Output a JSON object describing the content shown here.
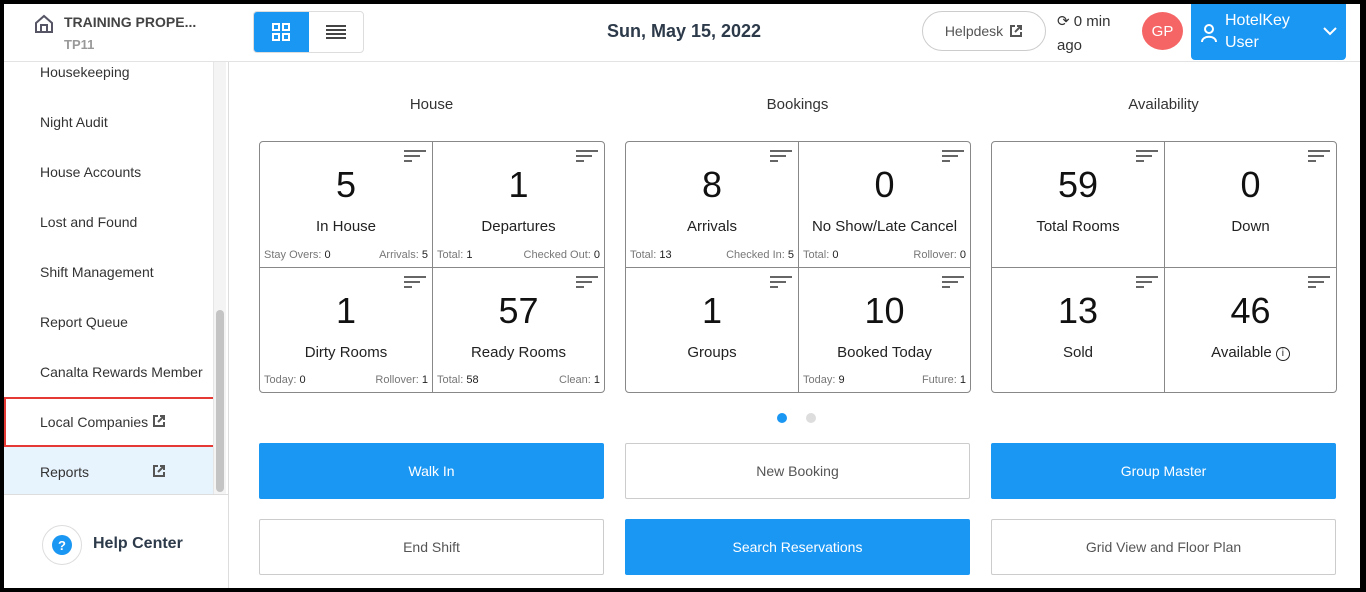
{
  "header": {
    "property_name": "TRAINING PROPE...",
    "property_code": "TP11",
    "date": "Sun, May 15, 2022",
    "helpdesk_label": "Helpdesk",
    "sync_text": "0 min ago",
    "avatar_initials": "GP",
    "user_name": "HotelKey User"
  },
  "sidebar": {
    "items": [
      {
        "label": "Housekeeping"
      },
      {
        "label": "Night Audit"
      },
      {
        "label": "House Accounts"
      },
      {
        "label": "Lost and Found"
      },
      {
        "label": "Shift Management"
      },
      {
        "label": "Report Queue"
      },
      {
        "label": "Canalta Rewards Member"
      },
      {
        "label": "Local Companies"
      },
      {
        "label": "Reports"
      }
    ],
    "help_label": "Help Center"
  },
  "sections": [
    {
      "title": "House",
      "cards": [
        {
          "value": "5",
          "label": "In House",
          "left_label": "Stay Overs:",
          "left_value": "0",
          "right_label": "Arrivals:",
          "right_value": "5"
        },
        {
          "value": "1",
          "label": "Departures",
          "left_label": "Total:",
          "left_value": "1",
          "right_label": "Checked Out:",
          "right_value": "0"
        },
        {
          "value": "1",
          "label": "Dirty Rooms",
          "left_label": "Today:",
          "left_value": "0",
          "right_label": "Rollover:",
          "right_value": "1"
        },
        {
          "value": "57",
          "label": "Ready Rooms",
          "left_label": "Total:",
          "left_value": "58",
          "right_label": "Clean:",
          "right_value": "1"
        }
      ]
    },
    {
      "title": "Bookings",
      "cards": [
        {
          "value": "8",
          "label": "Arrivals",
          "left_label": "Total:",
          "left_value": "13",
          "right_label": "Checked In:",
          "right_value": "5"
        },
        {
          "value": "0",
          "label": "No Show/Late Cancel",
          "left_label": "Total:",
          "left_value": "0",
          "right_label": "Rollover:",
          "right_value": "0"
        },
        {
          "value": "1",
          "label": "Groups"
        },
        {
          "value": "10",
          "label": "Booked Today",
          "left_label": "Today:",
          "left_value": "9",
          "right_label": "Future:",
          "right_value": "1"
        }
      ]
    },
    {
      "title": "Availability",
      "cards": [
        {
          "value": "59",
          "label": "Total Rooms"
        },
        {
          "value": "0",
          "label": "Down"
        },
        {
          "value": "13",
          "label": "Sold"
        },
        {
          "value": "46",
          "label": "Available"
        }
      ]
    }
  ],
  "carousel": {
    "pages": 2,
    "active": 1
  },
  "buttons": {
    "walk_in": "Walk In",
    "new_booking": "New Booking",
    "group_master": "Group Master",
    "end_shift": "End Shift",
    "search_reservations": "Search Reservations",
    "grid_view": "Grid View and Floor Plan"
  },
  "colors": {
    "primary": "#1a96f3",
    "avatar": "#f56565",
    "highlight": "#e53935"
  }
}
